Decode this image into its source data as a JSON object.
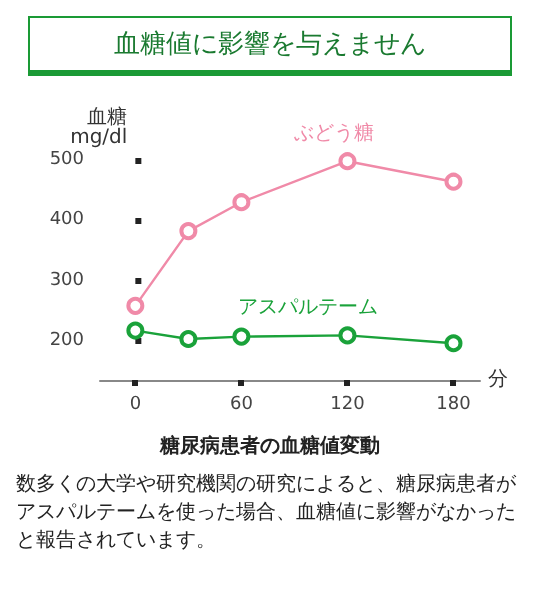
{
  "chart_data": {
    "type": "line",
    "title": "血糖値に影響を与えません",
    "xlabel": "分",
    "ylabel": "血糖\nmg/dl",
    "x": [
      0,
      30,
      60,
      120,
      180
    ],
    "xlim": [
      -20,
      195
    ],
    "xticks": [
      0,
      60,
      120,
      180
    ],
    "ylim": [
      135,
      500
    ],
    "yticks": [
      200,
      300,
      400,
      500
    ],
    "series": [
      {
        "name": "ぶどう糖",
        "color": "#f08aa8",
        "values": [
          258,
          382,
          430,
          498,
          464
        ]
      },
      {
        "name": "アスパルテーム",
        "color": "#1aa23a",
        "values": [
          217,
          203,
          207,
          209,
          196
        ]
      }
    ],
    "marker": "circle",
    "line_style": "solid",
    "grid": false,
    "legend": false,
    "annotations": [
      "糖尿病患者の血糖値変動",
      "数多くの大学や研究機関の研究によると、糖尿病患者がアスパルテームを使った場合、血糖値に影響がなかったと報告されています。"
    ]
  }
}
